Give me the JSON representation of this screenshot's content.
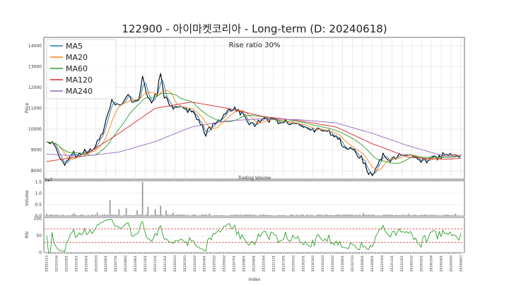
{
  "chart_data": [
    {
      "type": "line",
      "title": "122900 - 아이마켓코리아 - Long-term (D: 20240618)",
      "annotation": "Rise ratio 30%",
      "xlabel": "",
      "ylabel": "Price",
      "ylim": [
        7600,
        14400
      ],
      "yticks": [
        8000,
        9000,
        10000,
        11000,
        12000,
        13000,
        14000
      ],
      "grid": true,
      "legend_position": "top-left",
      "x_count": 230,
      "anchors": {
        "price": [
          [
            0,
            9450
          ],
          [
            4,
            9300
          ],
          [
            7,
            8600
          ],
          [
            10,
            8300
          ],
          [
            14,
            8800
          ],
          [
            18,
            8700
          ],
          [
            22,
            8900
          ],
          [
            26,
            9100
          ],
          [
            30,
            9600
          ],
          [
            33,
            10500
          ],
          [
            36,
            11400
          ],
          [
            39,
            11100
          ],
          [
            42,
            11300
          ],
          [
            45,
            11700
          ],
          [
            48,
            11200
          ],
          [
            51,
            11400
          ],
          [
            53,
            12500
          ],
          [
            55,
            11700
          ],
          [
            58,
            11300
          ],
          [
            61,
            11700
          ],
          [
            63,
            12800
          ],
          [
            65,
            11600
          ],
          [
            68,
            11200
          ],
          [
            72,
            10900
          ],
          [
            76,
            11100
          ],
          [
            80,
            10900
          ],
          [
            84,
            10400
          ],
          [
            88,
            9800
          ],
          [
            91,
            10100
          ],
          [
            95,
            10400
          ],
          [
            99,
            10800
          ],
          [
            103,
            11000
          ],
          [
            107,
            10800
          ],
          [
            111,
            10300
          ],
          [
            115,
            10200
          ],
          [
            120,
            10500
          ],
          [
            125,
            10400
          ],
          [
            130,
            10300
          ],
          [
            135,
            10300
          ],
          [
            140,
            10200
          ],
          [
            145,
            10050
          ],
          [
            150,
            9900
          ],
          [
            155,
            9850
          ],
          [
            160,
            9800
          ],
          [
            163,
            9300
          ],
          [
            167,
            9050
          ],
          [
            171,
            8900
          ],
          [
            175,
            8450
          ],
          [
            178,
            7900
          ],
          [
            181,
            7950
          ],
          [
            184,
            8400
          ],
          [
            186,
            8900
          ],
          [
            190,
            8500
          ],
          [
            194,
            8600
          ],
          [
            198,
            8800
          ],
          [
            202,
            8700
          ],
          [
            206,
            8400
          ],
          [
            210,
            8500
          ],
          [
            214,
            8600
          ],
          [
            218,
            8700
          ],
          [
            222,
            8750
          ],
          [
            226,
            8700
          ],
          [
            229,
            8750
          ]
        ],
        "ma240": [
          [
            0,
            8800
          ],
          [
            20,
            8700
          ],
          [
            40,
            8900
          ],
          [
            60,
            9400
          ],
          [
            80,
            10100
          ],
          [
            100,
            10400
          ],
          [
            120,
            10500
          ],
          [
            140,
            10450
          ],
          [
            160,
            10300
          ],
          [
            180,
            9800
          ],
          [
            200,
            9200
          ],
          [
            220,
            8700
          ],
          [
            229,
            8700
          ]
        ],
        "ma120": [
          [
            0,
            8450
          ],
          [
            20,
            8700
          ],
          [
            40,
            9800
          ],
          [
            60,
            11000
          ],
          [
            80,
            11300
          ],
          [
            100,
            11000
          ],
          [
            120,
            10600
          ],
          [
            140,
            10400
          ],
          [
            160,
            10100
          ],
          [
            180,
            9300
          ],
          [
            200,
            8650
          ],
          [
            220,
            8550
          ],
          [
            229,
            8600
          ]
        ]
      },
      "legend": [
        {
          "name": "MA5",
          "color": "#1f77b4"
        },
        {
          "name": "MA20",
          "color": "#ff7f0e"
        },
        {
          "name": "MA60",
          "color": "#2ca02c"
        },
        {
          "name": "MA120",
          "color": "#d62728"
        },
        {
          "name": "MA240",
          "color": "#9467bd"
        }
      ],
      "price_color": "#000000"
    },
    {
      "type": "bar",
      "title": "Trading Volume",
      "ylabel": "Volume",
      "ylim": [
        0,
        1.5
      ],
      "yticks": [
        0.0,
        0.5,
        1.0,
        1.5
      ],
      "scale_label": "1e7",
      "bar_color": "#9b9b9b",
      "spikes": [
        [
          0,
          0.1
        ],
        [
          15,
          0.12
        ],
        [
          28,
          0.15
        ],
        [
          35,
          0.7
        ],
        [
          40,
          0.3
        ],
        [
          44,
          0.35
        ],
        [
          50,
          0.25
        ],
        [
          53,
          1.5
        ],
        [
          56,
          0.4
        ],
        [
          60,
          0.3
        ],
        [
          63,
          0.45
        ],
        [
          66,
          0.25
        ],
        [
          70,
          0.15
        ],
        [
          90,
          0.1
        ],
        [
          120,
          0.08
        ],
        [
          150,
          0.07
        ],
        [
          175,
          0.12
        ],
        [
          200,
          0.09
        ],
        [
          226,
          0.1
        ]
      ]
    },
    {
      "type": "line",
      "title": "",
      "ylabel": "RSI",
      "ylim": [
        0,
        100
      ],
      "yticks": [
        0,
        50,
        100
      ],
      "overbought": 70,
      "oversold": 30,
      "line_color": "#2ca02c",
      "threshold_color": "#d62728",
      "xlabel": "Index",
      "xticks": [
        "20201214",
        "20210104",
        "20210201",
        "20210301",
        "20210401",
        "20210503",
        "20210601",
        "20210701",
        "20210802",
        "20210901",
        "20211001",
        "20211101",
        "20211201",
        "20220103",
        "20220203",
        "20220302",
        "20220401",
        "20220502",
        "20220602",
        "20220701",
        "20220801",
        "20220901",
        "20221004",
        "20221101",
        "20221201",
        "20230102",
        "20230201",
        "20230302",
        "20230403",
        "20230502",
        "20230601",
        "20230703",
        "20230801",
        "20230901",
        "20231004",
        "20231101",
        "20231201",
        "20240102",
        "20240201",
        "20240304",
        "20240401",
        "20240502",
        "20240603"
      ]
    }
  ]
}
